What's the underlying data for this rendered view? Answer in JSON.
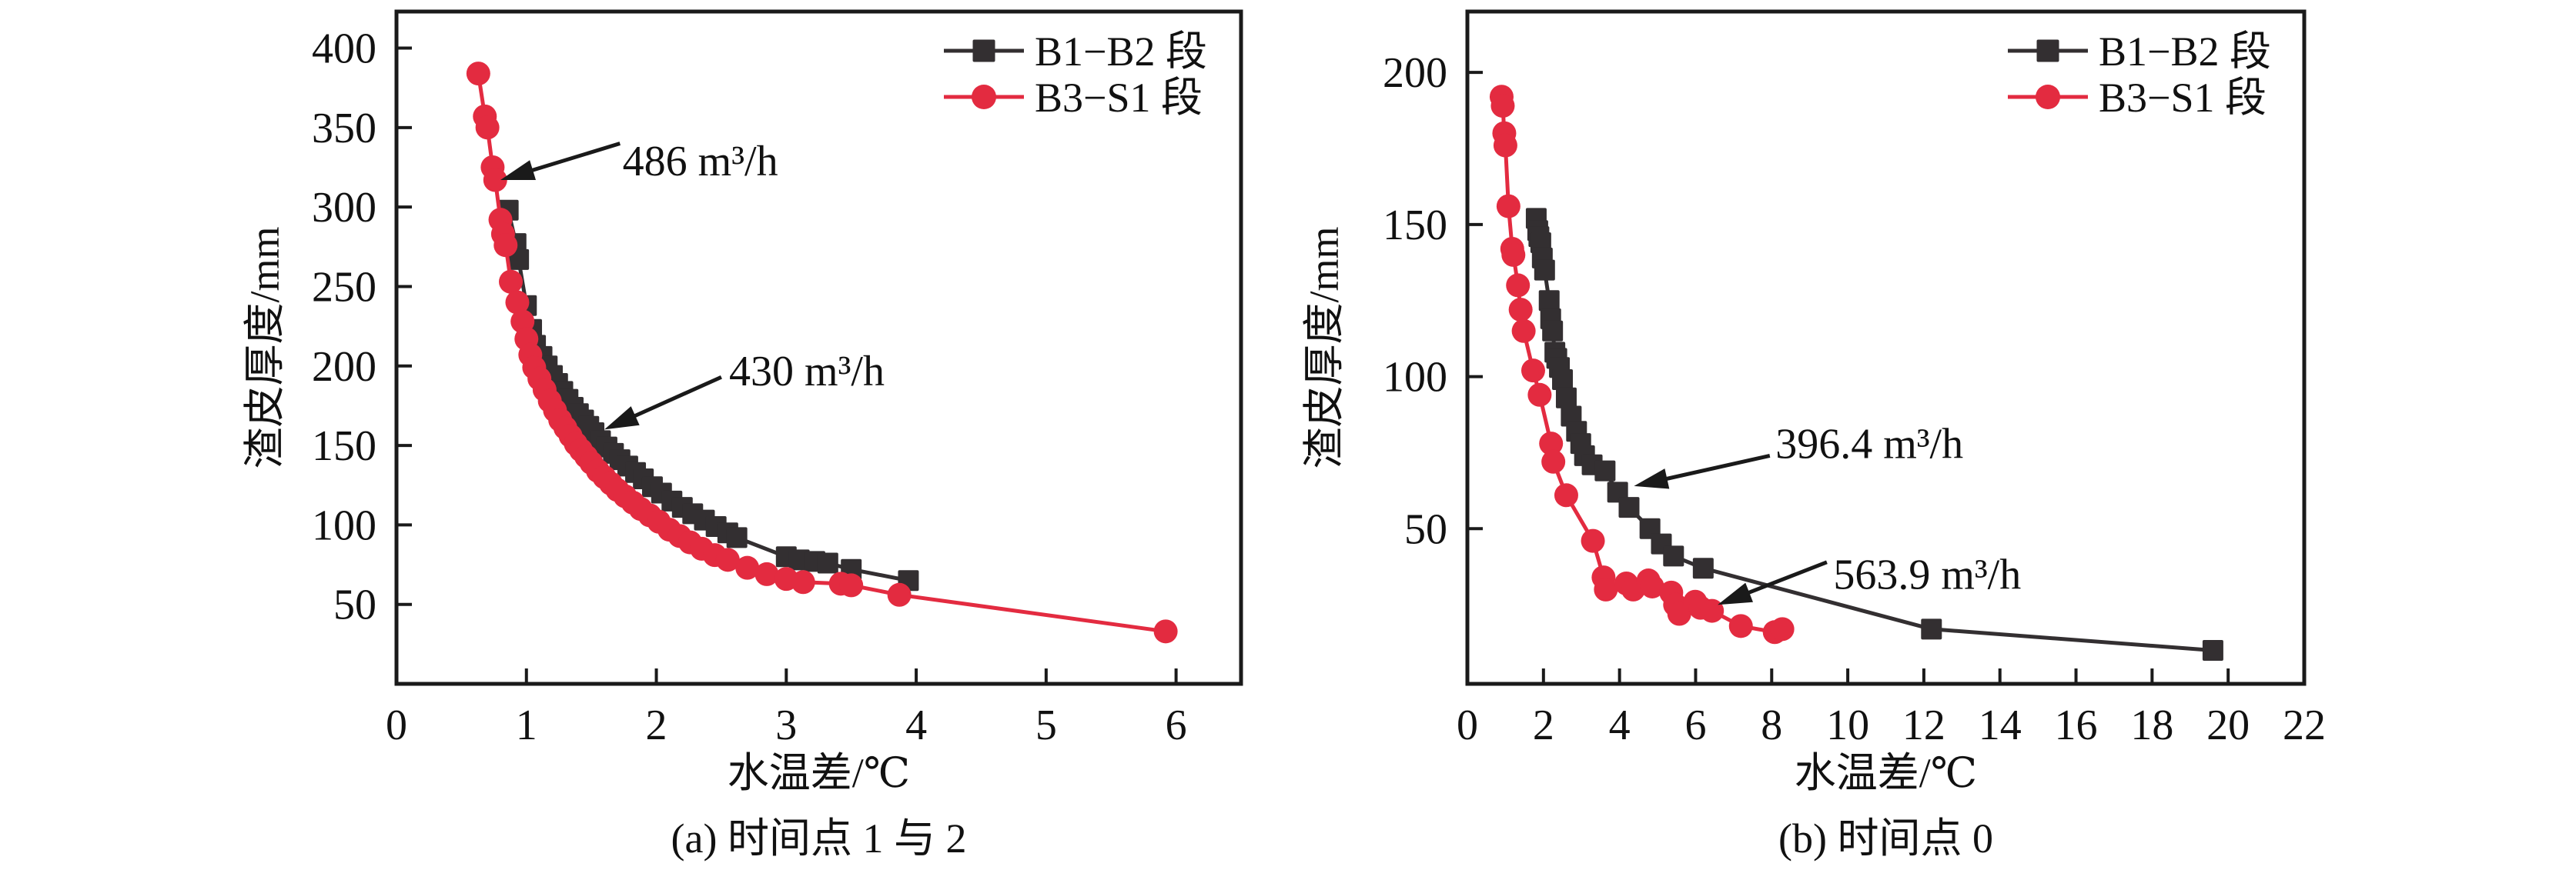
{
  "figure": {
    "colors": {
      "black_series": "#332f31",
      "red_series": "#e32b40",
      "axis": "#1a1a1a",
      "text": "#111111",
      "background": "#ffffff"
    }
  },
  "chart_data": [
    {
      "type": "line",
      "panel": "a",
      "caption": "(a) 时间点 1 与 2",
      "xlabel": "水温差/℃",
      "ylabel": "渣皮厚度/mm",
      "xlim": [
        0,
        6.5
      ],
      "ylim": [
        0,
        423
      ],
      "xticks": [
        0,
        1,
        2,
        3,
        4,
        5,
        6
      ],
      "yticks": [
        50,
        100,
        150,
        200,
        250,
        300,
        350,
        400
      ],
      "grid": false,
      "legend_position": "top-right-inside",
      "legend": [
        {
          "label": "B1−B2 段",
          "color_key": "black_series",
          "marker": "square"
        },
        {
          "label": "B3−S1 段",
          "color_key": "red_series",
          "marker": "circle"
        }
      ],
      "annotations": [
        {
          "text": "486 m³/h",
          "text_at": [
            1.74,
            329
          ],
          "arrow_from": [
            1.72,
            340
          ],
          "arrow_to": [
            0.8,
            317
          ]
        },
        {
          "text": "430 m³/h",
          "text_at": [
            2.56,
            197
          ],
          "arrow_from": [
            2.5,
            193
          ],
          "arrow_to": [
            1.6,
            160
          ]
        }
      ],
      "series": [
        {
          "name": "B1−B2 段",
          "color_key": "black_series",
          "marker": "square",
          "points": [
            [
              0.86,
              298
            ],
            [
              0.92,
              277
            ],
            [
              0.94,
              267
            ],
            [
              1.0,
              238
            ],
            [
              1.04,
              223
            ],
            [
              1.07,
              213
            ],
            [
              1.12,
              206
            ],
            [
              1.16,
              200
            ],
            [
              1.2,
              194
            ],
            [
              1.24,
              189
            ],
            [
              1.28,
              184
            ],
            [
              1.32,
              179
            ],
            [
              1.36,
              174
            ],
            [
              1.4,
              170
            ],
            [
              1.44,
              166
            ],
            [
              1.48,
              162
            ],
            [
              1.52,
              158
            ],
            [
              1.57,
              153
            ],
            [
              1.62,
              149
            ],
            [
              1.67,
              145
            ],
            [
              1.72,
              141
            ],
            [
              1.78,
              137
            ],
            [
              1.84,
              133
            ],
            [
              1.9,
              129
            ],
            [
              1.97,
              124
            ],
            [
              2.04,
              120
            ],
            [
              2.12,
              115
            ],
            [
              2.2,
              111
            ],
            [
              2.28,
              107
            ],
            [
              2.37,
              103
            ],
            [
              2.46,
              99
            ],
            [
              2.55,
              95
            ],
            [
              2.62,
              92
            ],
            [
              3.0,
              80
            ],
            [
              3.1,
              78
            ],
            [
              3.22,
              77
            ],
            [
              3.32,
              76
            ],
            [
              3.5,
              72
            ],
            [
              3.94,
              65
            ]
          ]
        },
        {
          "name": "B3−S1 段",
          "color_key": "red_series",
          "marker": "circle",
          "points": [
            [
              0.63,
              384
            ],
            [
              0.68,
              357
            ],
            [
              0.7,
              350
            ],
            [
              0.74,
              325
            ],
            [
              0.76,
              317
            ],
            [
              0.8,
              292
            ],
            [
              0.82,
              283
            ],
            [
              0.84,
              276
            ],
            [
              0.88,
              253
            ],
            [
              0.93,
              240
            ],
            [
              0.97,
              228
            ],
            [
              1.0,
              217
            ],
            [
              1.03,
              207
            ],
            [
              1.06,
              199
            ],
            [
              1.1,
              192
            ],
            [
              1.14,
              185
            ],
            [
              1.18,
              178
            ],
            [
              1.22,
              172
            ],
            [
              1.26,
              166
            ],
            [
              1.3,
              161
            ],
            [
              1.34,
              156
            ],
            [
              1.38,
              151
            ],
            [
              1.42,
              147
            ],
            [
              1.46,
              143
            ],
            [
              1.5,
              139
            ],
            [
              1.55,
              134
            ],
            [
              1.6,
              130
            ],
            [
              1.65,
              126
            ],
            [
              1.7,
              122
            ],
            [
              1.76,
              118
            ],
            [
              1.82,
              114
            ],
            [
              1.88,
              110
            ],
            [
              1.95,
              106
            ],
            [
              2.02,
              102
            ],
            [
              2.1,
              97
            ],
            [
              2.18,
              93
            ],
            [
              2.26,
              89
            ],
            [
              2.35,
              85
            ],
            [
              2.45,
              81
            ],
            [
              2.55,
              78
            ],
            [
              2.7,
              73
            ],
            [
              2.85,
              69
            ],
            [
              3.0,
              66
            ],
            [
              3.13,
              64
            ],
            [
              3.42,
              63
            ],
            [
              3.5,
              62
            ],
            [
              3.87,
              56
            ],
            [
              5.92,
              33
            ]
          ]
        }
      ]
    },
    {
      "type": "line",
      "panel": "b",
      "caption": "(b) 时间点 0",
      "xlabel": "水温差/℃",
      "ylabel": "渣皮厚度/mm",
      "xlim": [
        0,
        22
      ],
      "ylim": [
        -1,
        220
      ],
      "xticks": [
        0,
        2,
        4,
        6,
        8,
        10,
        12,
        14,
        16,
        18,
        20,
        22
      ],
      "yticks": [
        50,
        100,
        150,
        200
      ],
      "grid": false,
      "legend_position": "top-right-inside",
      "legend": [
        {
          "label": "B1−B2 段",
          "color_key": "black_series",
          "marker": "square"
        },
        {
          "label": "B3−S1 段",
          "color_key": "red_series",
          "marker": "circle"
        }
      ],
      "annotations": [
        {
          "text": "396.4 m³/h",
          "text_at": [
            8.1,
            78
          ],
          "arrow_from": [
            7.95,
            74
          ],
          "arrow_to": [
            4.38,
            64
          ]
        },
        {
          "text": "563.9 m³/h",
          "text_at": [
            9.62,
            35
          ],
          "arrow_from": [
            9.45,
            39
          ],
          "arrow_to": [
            6.58,
            25
          ]
        }
      ],
      "series": [
        {
          "name": "B1−B2 段",
          "color_key": "black_series",
          "marker": "square",
          "points": [
            [
              1.81,
              152
            ],
            [
              1.85,
              148
            ],
            [
              1.88,
              146
            ],
            [
              1.93,
              144
            ],
            [
              1.97,
              139
            ],
            [
              2.03,
              135
            ],
            [
              2.15,
              125
            ],
            [
              2.19,
              119
            ],
            [
              2.24,
              115
            ],
            [
              2.3,
              108
            ],
            [
              2.35,
              106
            ],
            [
              2.42,
              103
            ],
            [
              2.5,
              99
            ],
            [
              2.6,
              93
            ],
            [
              2.73,
              87
            ],
            [
              2.87,
              82
            ],
            [
              2.98,
              78
            ],
            [
              3.08,
              74
            ],
            [
              3.28,
              71
            ],
            [
              3.62,
              69
            ],
            [
              3.95,
              62
            ],
            [
              4.25,
              57
            ],
            [
              4.8,
              50
            ],
            [
              5.1,
              45
            ],
            [
              5.42,
              41
            ],
            [
              6.2,
              37
            ],
            [
              12.2,
              17
            ],
            [
              19.6,
              10
            ]
          ]
        },
        {
          "name": "B3−S1 段",
          "color_key": "red_series",
          "marker": "circle",
          "points": [
            [
              0.9,
              192
            ],
            [
              0.93,
              189
            ],
            [
              0.97,
              180
            ],
            [
              1.0,
              176
            ],
            [
              1.08,
              156
            ],
            [
              1.18,
              142
            ],
            [
              1.21,
              140
            ],
            [
              1.33,
              130
            ],
            [
              1.4,
              122
            ],
            [
              1.48,
              115
            ],
            [
              1.73,
              102
            ],
            [
              1.9,
              94
            ],
            [
              2.2,
              78
            ],
            [
              2.26,
              72
            ],
            [
              2.6,
              61
            ],
            [
              3.3,
              46
            ],
            [
              3.58,
              34
            ],
            [
              3.64,
              30
            ],
            [
              4.18,
              32
            ],
            [
              4.36,
              30
            ],
            [
              4.76,
              33
            ],
            [
              4.86,
              31
            ],
            [
              5.36,
              29
            ],
            [
              5.46,
              25
            ],
            [
              5.57,
              22
            ],
            [
              5.99,
              26
            ],
            [
              6.13,
              24
            ],
            [
              6.43,
              23
            ],
            [
              7.19,
              18
            ],
            [
              8.08,
              16
            ],
            [
              8.28,
              17
            ]
          ]
        }
      ]
    }
  ]
}
